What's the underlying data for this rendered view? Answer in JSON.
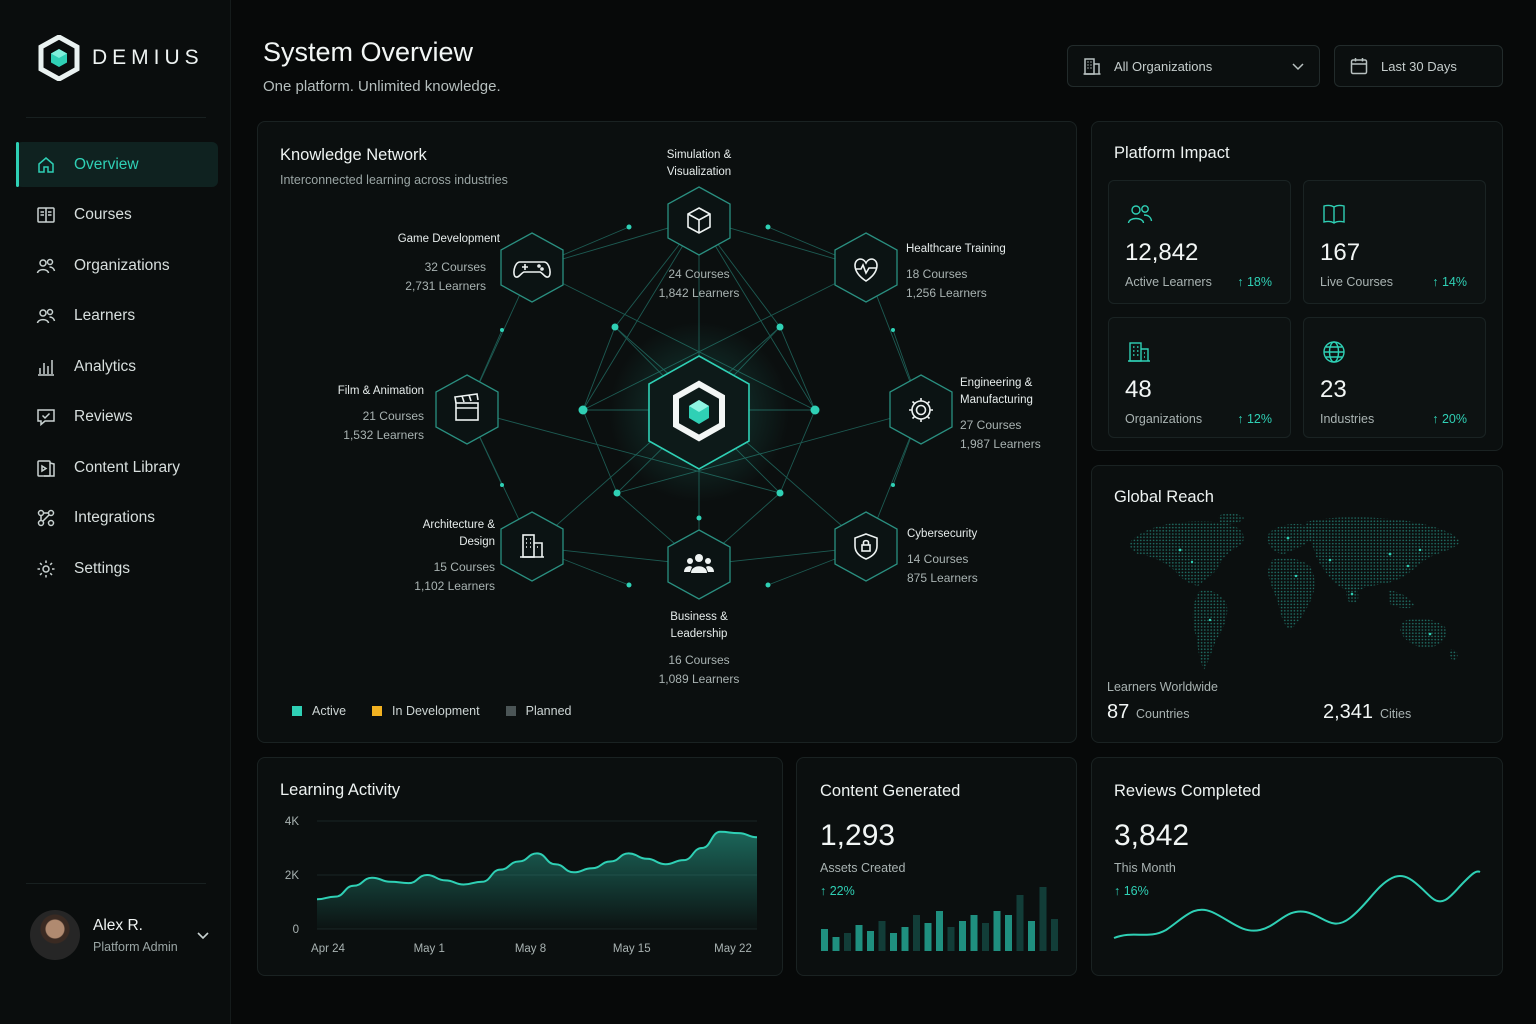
{
  "brand": {
    "name": "DEMIUS"
  },
  "nav": [
    {
      "label": "Overview",
      "icon": "home-icon",
      "active": true
    },
    {
      "label": "Courses",
      "icon": "book-icon"
    },
    {
      "label": "Organizations",
      "icon": "users-icon"
    },
    {
      "label": "Learners",
      "icon": "learners-icon"
    },
    {
      "label": "Analytics",
      "icon": "bar-chart-icon"
    },
    {
      "label": "Reviews",
      "icon": "review-icon"
    },
    {
      "label": "Content Library",
      "icon": "library-icon"
    },
    {
      "label": "Integrations",
      "icon": "integration-icon"
    },
    {
      "label": "Settings",
      "icon": "gear-icon"
    }
  ],
  "user": {
    "name": "Alex R.",
    "role": "Platform Admin"
  },
  "header": {
    "title": "System Overview",
    "subtitle": "One platform. Unlimited knowledge.",
    "org_select": "All Organizations",
    "date_select": "Last 30 Days"
  },
  "network": {
    "title": "Knowledge Network",
    "subtitle": "Interconnected learning across industries",
    "nodes": {
      "simulation": {
        "label1": "Simulation &",
        "label2": "Visualization",
        "courses": "24 Courses",
        "learners": "1,842 Learners"
      },
      "game": {
        "label1": "Game Development",
        "courses": "32 Courses",
        "learners": "2,731 Learners"
      },
      "healthcare": {
        "label1": "Healthcare Training",
        "courses": "18 Courses",
        "learners": "1,256 Learners"
      },
      "film": {
        "label1": "Film & Animation",
        "courses": "21 Courses",
        "learners": "1,532 Learners"
      },
      "engineering": {
        "label1": "Engineering &",
        "label2": "Manufacturing",
        "courses": "27 Courses",
        "learners": "1,987 Learners"
      },
      "architecture": {
        "label1": "Architecture &",
        "label2": "Design",
        "courses": "15 Courses",
        "learners": "1,102 Learners"
      },
      "cyber": {
        "label1": "Cybersecurity",
        "courses": "14 Courses",
        "learners": "875 Learners"
      },
      "business": {
        "label1": "Business &",
        "label2": "Leadership",
        "courses": "16 Courses",
        "learners": "1,089 Learners"
      }
    },
    "legend": {
      "active": "Active",
      "dev": "In Development",
      "planned": "Planned"
    },
    "colors": {
      "accent": "#2fd0b5",
      "dev": "#f2b221",
      "planned": "#4b5556"
    }
  },
  "impact": {
    "title": "Platform Impact",
    "stats": [
      {
        "value": "12,842",
        "label": "Active Learners",
        "change": "↑ 18%"
      },
      {
        "value": "167",
        "label": "Live Courses",
        "change": "↑ 14%"
      },
      {
        "value": "48",
        "label": "Organizations",
        "change": "↑ 12%"
      },
      {
        "value": "23",
        "label": "Industries",
        "change": "↑ 20%"
      }
    ]
  },
  "reach": {
    "title": "Global Reach",
    "caption": "Learners Worldwide",
    "countries_value": "87",
    "countries_label": "Countries",
    "cities_value": "2,341",
    "cities_label": "Cities"
  },
  "activity": {
    "title": "Learning Activity"
  },
  "content": {
    "title": "Content Generated",
    "value": "1,293",
    "label": "Assets Created",
    "change": "↑ 22%"
  },
  "reviews": {
    "title": "Reviews Completed",
    "value": "3,842",
    "label": "This Month",
    "change": "↑ 16%"
  },
  "chart_data": {
    "type": "area",
    "ylim": [
      0,
      4000
    ],
    "yticks": [
      "0",
      "2K",
      "4K"
    ],
    "xticks": [
      "Apr 24",
      "May 1",
      "May 8",
      "May 15",
      "May 22"
    ],
    "values": [
      1100,
      1200,
      1600,
      1900,
      1750,
      1700,
      2000,
      1800,
      1650,
      1750,
      2200,
      2500,
      2800,
      2400,
      2100,
      2250,
      2500,
      2800,
      2600,
      2400,
      2550,
      3000,
      3600,
      3550,
      3400
    ]
  }
}
